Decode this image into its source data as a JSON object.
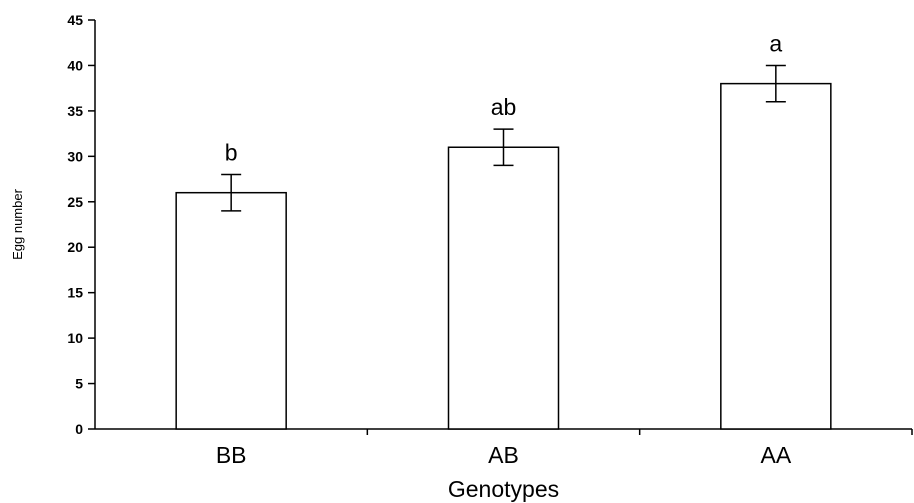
{
  "chart_data": {
    "type": "bar",
    "title": "",
    "xlabel": "Genotypes",
    "ylabel": "Egg number",
    "categories": [
      "BB",
      "AB",
      "AA"
    ],
    "values": [
      26,
      31,
      38
    ],
    "error": [
      2,
      2,
      2
    ],
    "significance_labels": [
      "b",
      "ab",
      "a"
    ],
    "ylim": [
      0,
      45
    ],
    "yticks": [
      0,
      5,
      10,
      15,
      20,
      25,
      30,
      35,
      40,
      45
    ],
    "grid": false,
    "legend": "none",
    "bar_fill": "#ffffff",
    "bar_stroke": "#000000"
  }
}
